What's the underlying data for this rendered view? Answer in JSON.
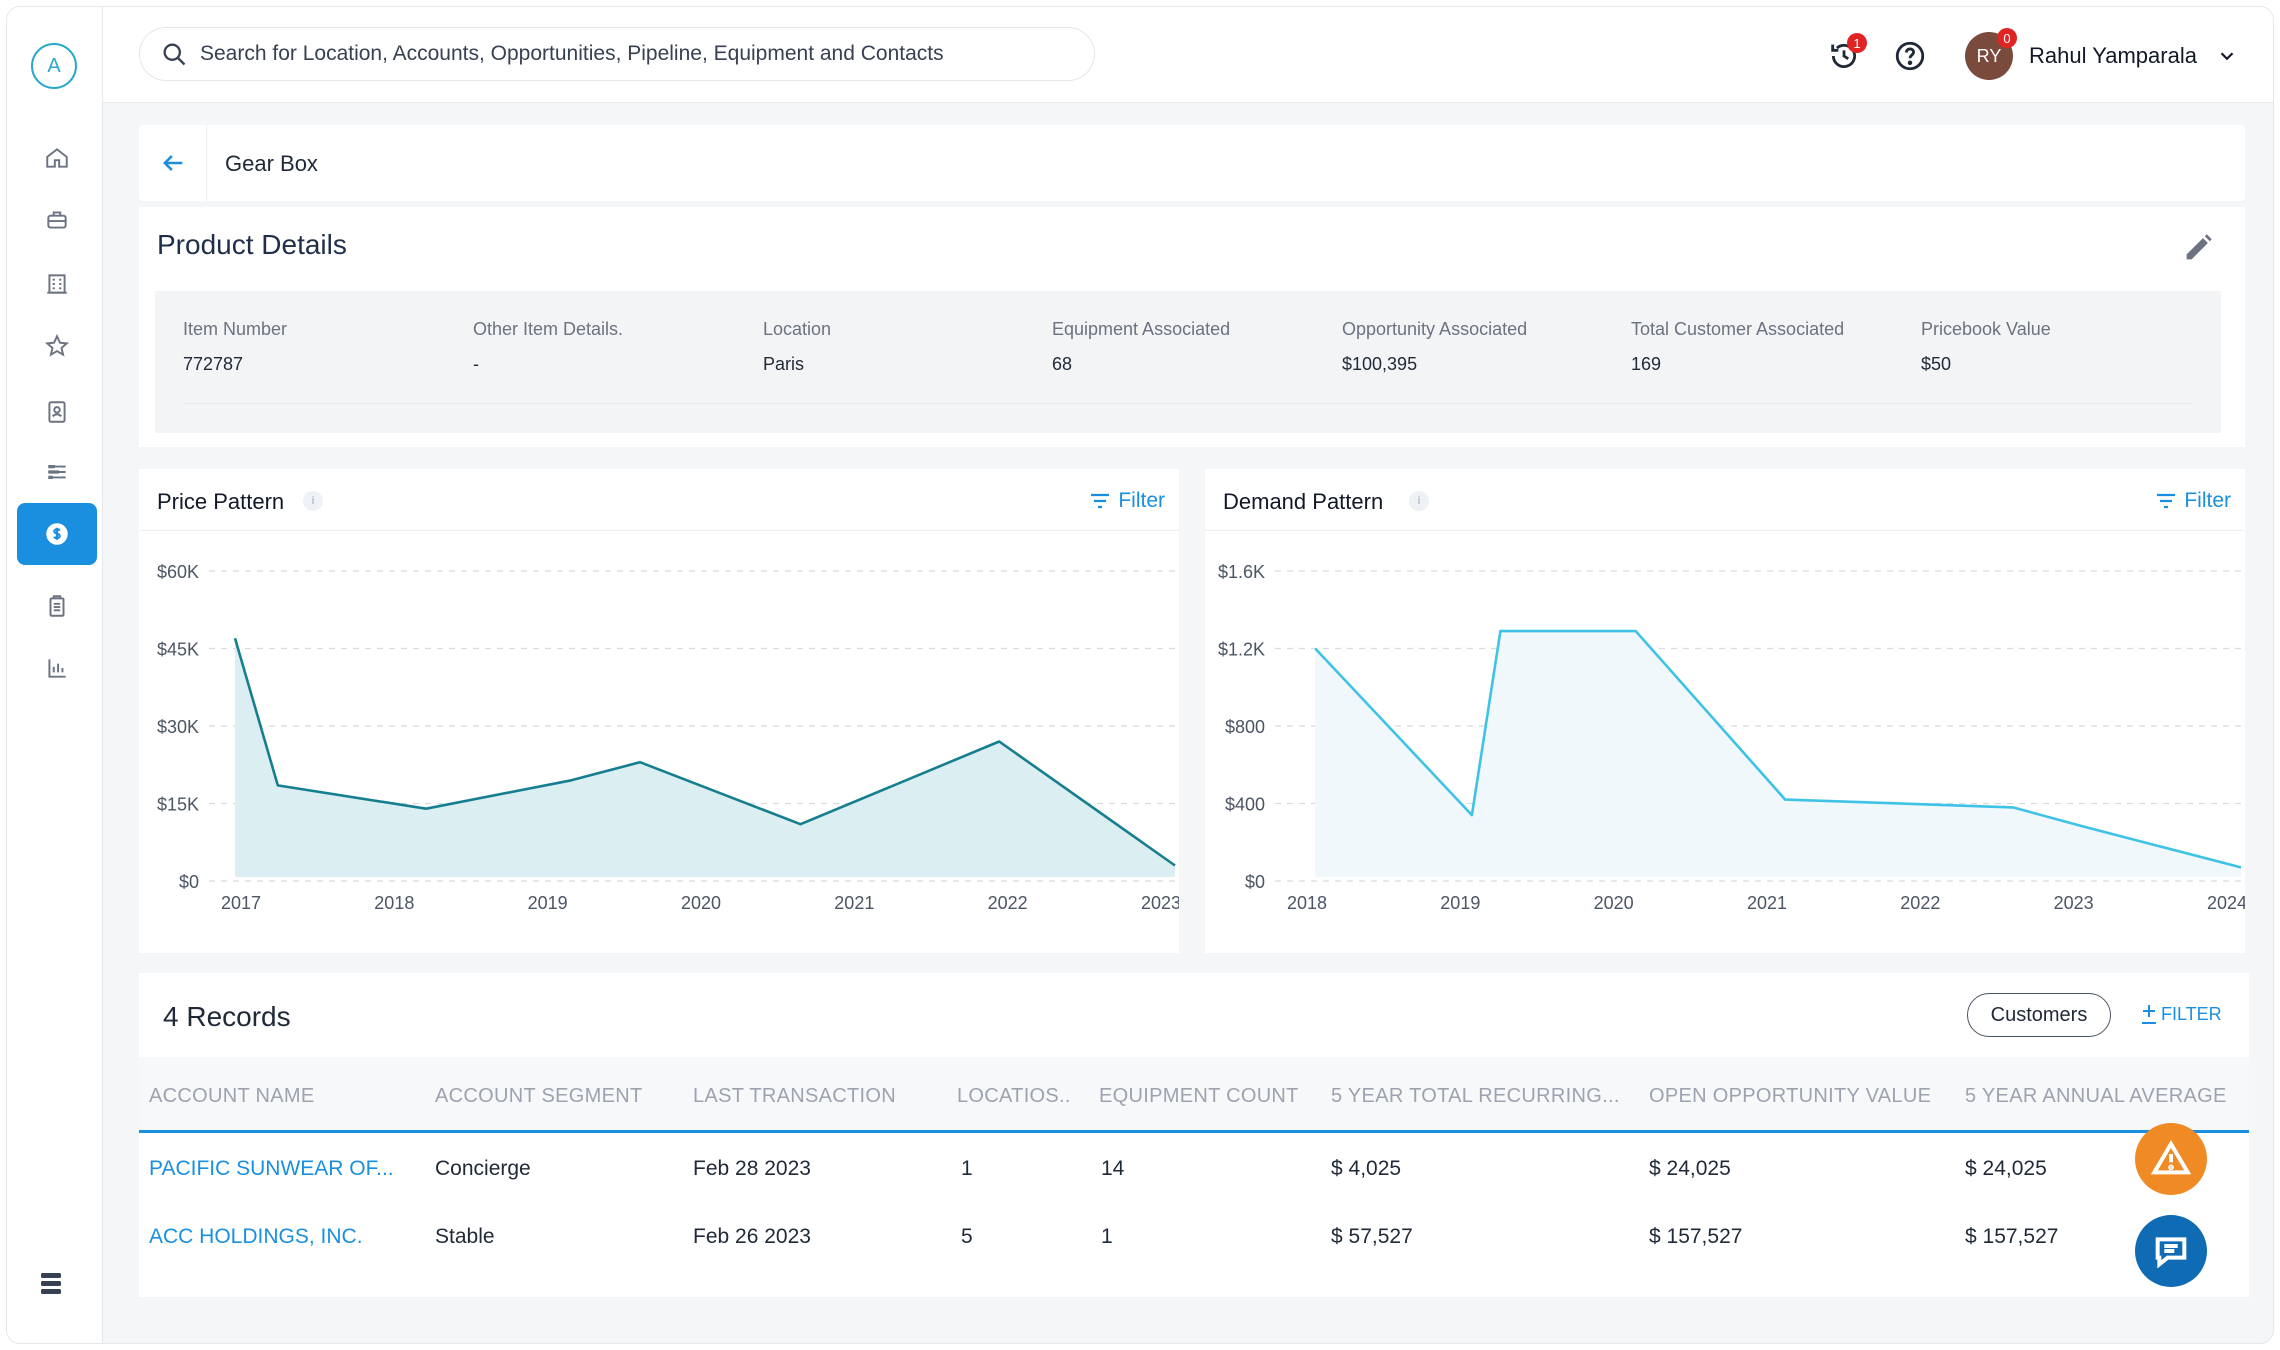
{
  "app": {
    "logo_letter": "A"
  },
  "sidebar": {
    "items": [
      {
        "name": "home"
      },
      {
        "name": "briefcase"
      },
      {
        "name": "building"
      },
      {
        "name": "star"
      },
      {
        "name": "contact"
      },
      {
        "name": "pipeline"
      },
      {
        "name": "dollar",
        "active": true
      },
      {
        "name": "clipboard"
      },
      {
        "name": "bar-chart"
      }
    ]
  },
  "header": {
    "search_placeholder": "Search for Location, Accounts, Opportunities, Pipeline, Equipment and Contacts",
    "history_badge": "1",
    "avatar_initials": "RY",
    "avatar_badge": "0",
    "user_name": "Rahul Yamparala"
  },
  "breadcrumb": {
    "title": "Gear Box"
  },
  "product_details": {
    "title": "Product Details",
    "fields": [
      {
        "label": "Item Number",
        "value": "772787"
      },
      {
        "label": "Other Item Details.",
        "value": "-"
      },
      {
        "label": "Location",
        "value": "Paris"
      },
      {
        "label": "Equipment Associated",
        "value": "68"
      },
      {
        "label": "Opportunity Associated",
        "value": "$100,395"
      },
      {
        "label": "Total Customer Associated",
        "value": "169"
      },
      {
        "label": "Pricebook Value",
        "value": "$50"
      }
    ]
  },
  "price_chart": {
    "title": "Price Pattern",
    "info": "i",
    "filter_label": "Filter"
  },
  "demand_chart": {
    "title": "Demand Pattern",
    "info": "i",
    "filter_label": "Filter"
  },
  "chart_data": [
    {
      "type": "area",
      "title": "Price Pattern",
      "x": [
        2017,
        2017.28,
        2018.25,
        2019.2,
        2019.65,
        2020.7,
        2022.0,
        2023.15
      ],
      "values": [
        47000,
        18500,
        14000,
        19500,
        23000,
        11000,
        27000,
        3000
      ],
      "xlim": [
        2017,
        2023.15
      ],
      "ylim": [
        0,
        60000
      ],
      "x_ticks": [
        "2017",
        "2018",
        "2019",
        "2020",
        "2021",
        "2022",
        "2023"
      ],
      "y_ticks": [
        "$0",
        "$15K",
        "$30K",
        "$45K",
        "$60K"
      ],
      "color": "#167f8f",
      "fill": "#dbeef2",
      "grid": true
    },
    {
      "type": "area",
      "title": "Demand Pattern",
      "x": [
        2018.0,
        2019.1,
        2019.3,
        2020.25,
        2021.3,
        2022.9,
        2023.4,
        2024.5
      ],
      "values": [
        1200,
        340,
        1290,
        1290,
        420,
        380,
        280,
        70
      ],
      "xlim": [
        2017.9,
        2024.5
      ],
      "ylim": [
        0,
        1600
      ],
      "x_ticks": [
        "2018",
        "2019",
        "2020",
        "2021",
        "2022",
        "2023",
        "2024"
      ],
      "y_ticks": [
        "$0",
        "$400",
        "$800",
        "$1.2K",
        "$1.6K"
      ],
      "color": "#3ec3e6",
      "fill": "#f1f8fb",
      "grid": true
    }
  ],
  "records": {
    "title": "4 Records",
    "customers_button": "Customers",
    "filter_label": "FILTER",
    "columns": [
      "ACCOUNT NAME",
      "ACCOUNT SEGMENT",
      "LAST TRANSACTION",
      "LOCATIOS..",
      "EQUIPMENT COUNT",
      "5 YEAR TOTAL RECURRING...",
      "OPEN OPPORTUNITY VALUE",
      "5 YEAR ANNUAL AVERAGE"
    ],
    "rows": [
      [
        "PACIFIC SUNWEAR OF...",
        "Concierge",
        "Feb 28 2023",
        "1",
        "14",
        "$ 4,025",
        "$ 24,025",
        "$ 24,025"
      ],
      [
        "ACC HOLDINGS, INC.",
        "Stable",
        "Feb 26 2023",
        "5",
        "1",
        "$ 57,527",
        "$ 157,527",
        "$ 157,527"
      ]
    ]
  },
  "colors": {
    "accent": "#1a8fe0",
    "warning": "#f08a24",
    "chat": "#0f6bb3"
  },
  "fabs": [
    {
      "icon": "warning-icon"
    },
    {
      "icon": "chat-icon"
    }
  ]
}
